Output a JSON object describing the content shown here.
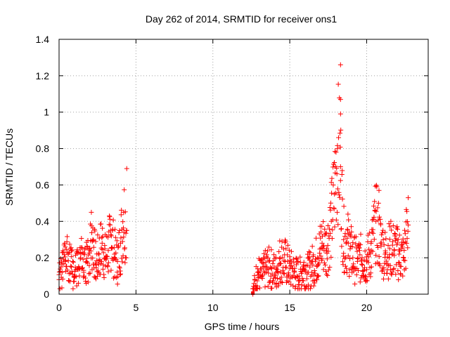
{
  "chart_data": {
    "type": "scatter",
    "title": "Day 262 of 2014, SRMTID for receiver ons1",
    "xlabel": "GPS time / hours",
    "ylabel": "SRMTID / TECUs",
    "xlim": [
      0,
      24
    ],
    "ylim": [
      0,
      1.4
    ],
    "xticks": [
      0,
      5,
      10,
      15,
      20
    ],
    "xtick_labels": [
      "0",
      "5",
      "10",
      "15",
      "20"
    ],
    "yticks": [
      0,
      0.2,
      0.4,
      0.6,
      0.8,
      1.0,
      1.2,
      1.4
    ],
    "ytick_labels": [
      "0",
      "0.2",
      "0.4",
      "0.6",
      "0.8",
      "1",
      "1.2",
      "1.4"
    ],
    "grid": true,
    "marker": "plus",
    "color": "#ff0000",
    "series": [
      {
        "name": "ons1",
        "x": [
          0.0,
          0.2,
          0.4,
          0.6,
          0.8,
          1.0,
          1.2,
          1.4,
          1.6,
          1.8,
          2.0,
          2.2,
          2.4,
          2.6,
          2.8,
          3.0,
          3.2,
          3.4,
          3.6,
          3.8,
          4.0,
          4.2,
          4.4,
          12.6,
          12.9,
          13.2,
          13.5,
          13.8,
          14.1,
          14.4,
          14.7,
          15.0,
          15.3,
          15.6,
          15.9,
          16.2,
          16.5,
          16.8,
          17.1,
          17.4,
          17.7,
          17.9,
          18.1,
          18.3,
          18.5,
          18.8,
          19.1,
          19.4,
          19.7,
          20.0,
          20.3,
          20.6,
          20.9,
          21.2,
          21.5,
          21.8,
          22.1,
          22.4,
          22.7
        ],
        "y": [
          0.08,
          0.12,
          0.18,
          0.22,
          0.15,
          0.1,
          0.14,
          0.2,
          0.12,
          0.18,
          0.25,
          0.3,
          0.16,
          0.22,
          0.28,
          0.2,
          0.24,
          0.32,
          0.22,
          0.18,
          0.28,
          0.45,
          0.35,
          0.0,
          0.12,
          0.1,
          0.15,
          0.14,
          0.12,
          0.2,
          0.18,
          0.14,
          0.12,
          0.1,
          0.14,
          0.12,
          0.16,
          0.2,
          0.28,
          0.25,
          0.4,
          0.55,
          0.8,
          0.7,
          0.3,
          0.28,
          0.2,
          0.18,
          0.2,
          0.18,
          0.24,
          0.4,
          0.28,
          0.22,
          0.25,
          0.24,
          0.22,
          0.2,
          0.38
        ],
        "annotated_points": [
          {
            "x": 4.4,
            "y": 0.69
          },
          {
            "x": 18.3,
            "y": 1.26
          },
          {
            "x": 18.3,
            "y": 1.07
          },
          {
            "x": 18.3,
            "y": 0.99
          },
          {
            "x": 2.1,
            "y": 0.45
          },
          {
            "x": 20.8,
            "y": 0.57
          },
          {
            "x": 22.7,
            "y": 0.53
          }
        ]
      }
    ]
  }
}
